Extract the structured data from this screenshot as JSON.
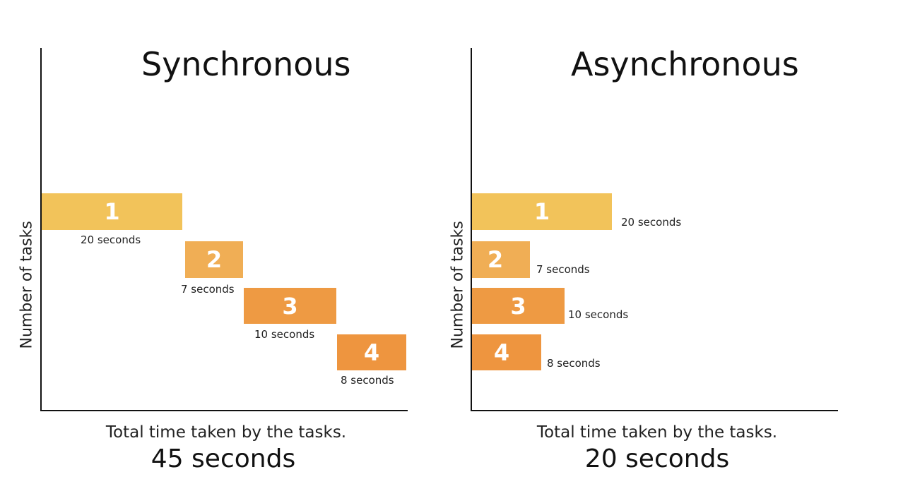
{
  "colors": {
    "task1": "#f2c35a",
    "task2": "#f0ae55",
    "task3": "#ee9a43",
    "task4": "#ee953f",
    "axis": "#111111"
  },
  "sync": {
    "title": "Synchronous",
    "ylabel": "Number of tasks",
    "footer_line": "Total time taken by the tasks.",
    "footer_total": "45 seconds",
    "tasks": [
      {
        "number": "1",
        "duration": "20 seconds"
      },
      {
        "number": "2",
        "duration": "7 seconds"
      },
      {
        "number": "3",
        "duration": "10 seconds"
      },
      {
        "number": "4",
        "duration": "8 seconds"
      }
    ]
  },
  "async": {
    "title": "Asynchronous",
    "ylabel": "Number of tasks",
    "footer_line": "Total time taken by the tasks.",
    "footer_total": "20 seconds",
    "tasks": [
      {
        "number": "1",
        "duration": "20 seconds"
      },
      {
        "number": "2",
        "duration": "7 seconds"
      },
      {
        "number": "3",
        "duration": "10 seconds"
      },
      {
        "number": "4",
        "duration": "8 seconds"
      }
    ]
  }
}
